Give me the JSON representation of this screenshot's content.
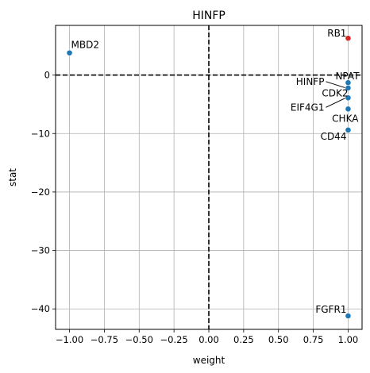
{
  "chart_data": {
    "type": "scatter",
    "title": "HINFP",
    "xlabel": "weight",
    "ylabel": "stat",
    "xlim": [
      -1.1,
      1.1
    ],
    "ylim": [
      -43.5,
      8.5
    ],
    "grid": true,
    "x_ticks": [
      -1.0,
      -0.75,
      -0.5,
      -0.25,
      0.0,
      0.25,
      0.5,
      0.75,
      1.0
    ],
    "x_tick_labels": [
      "−1.00",
      "−0.75",
      "−0.50",
      "−0.25",
      "0.00",
      "0.25",
      "0.50",
      "0.75",
      "1.00"
    ],
    "y_ticks": [
      -40,
      -30,
      -20,
      -10,
      0
    ],
    "y_tick_labels": [
      "−40",
      "−30",
      "−20",
      "−10",
      "0"
    ],
    "reference_lines": {
      "x": 0,
      "y": 0,
      "style": "dashed",
      "color": "#000000"
    },
    "colors": {
      "default": "#1f77b4",
      "highlight": "#d62728"
    },
    "points": [
      {
        "label": "MBD2",
        "x": -1.0,
        "y": 3.8,
        "color": "#1f77b4"
      },
      {
        "label": "RB1",
        "x": 1.0,
        "y": 6.3,
        "color": "#d62728"
      },
      {
        "label": "NPAT",
        "x": 1.0,
        "y": -1.3,
        "color": "#1f77b4"
      },
      {
        "label": "HINFP",
        "x": 1.0,
        "y": -2.2,
        "color": "#1f77b4"
      },
      {
        "label": "CDK2",
        "x": 1.0,
        "y": -3.8,
        "color": "#1f77b4"
      },
      {
        "label": "EIF4G1",
        "x": 1.0,
        "y": -3.9,
        "color": "#1f77b4"
      },
      {
        "label": "CHKA",
        "x": 1.0,
        "y": -5.8,
        "color": "#1f77b4"
      },
      {
        "label": "CD44",
        "x": 1.0,
        "y": -9.4,
        "color": "#1f77b4"
      },
      {
        "label": "FGFR1",
        "x": 1.0,
        "y": -41.2,
        "color": "#1f77b4"
      }
    ]
  }
}
